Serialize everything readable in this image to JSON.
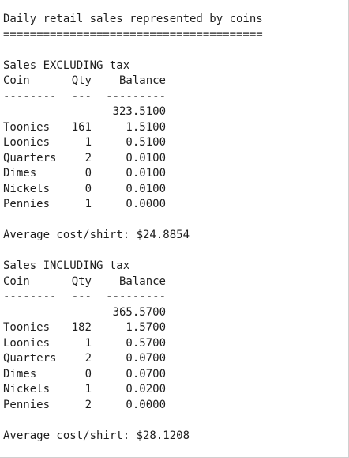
{
  "title": "Daily retail sales represented by coins",
  "title_rule": "=======================================",
  "sections": [
    {
      "heading": "Sales EXCLUDING tax",
      "col_coin": "Coin",
      "col_qty": "Qty",
      "col_balance": "Balance",
      "rule_coin": "--------",
      "rule_qty": "---",
      "rule_balance": "---------",
      "initial_balance": "323.5100",
      "rows": [
        {
          "coin": "Toonies",
          "qty": "161",
          "balance": "1.5100"
        },
        {
          "coin": "Loonies",
          "qty": "1",
          "balance": "0.5100"
        },
        {
          "coin": "Quarters",
          "qty": "2",
          "balance": "0.0100"
        },
        {
          "coin": "Dimes",
          "qty": "0",
          "balance": "0.0100"
        },
        {
          "coin": "Nickels",
          "qty": "0",
          "balance": "0.0100"
        },
        {
          "coin": "Pennies",
          "qty": "1",
          "balance": "0.0000"
        }
      ],
      "average": "Average cost/shirt: $24.8854"
    },
    {
      "heading": "Sales INCLUDING tax",
      "col_coin": "Coin",
      "col_qty": "Qty",
      "col_balance": "Balance",
      "rule_coin": "--------",
      "rule_qty": "---",
      "rule_balance": "---------",
      "initial_balance": "365.5700",
      "rows": [
        {
          "coin": "Toonies",
          "qty": "182",
          "balance": "1.5700"
        },
        {
          "coin": "Loonies",
          "qty": "1",
          "balance": "0.5700"
        },
        {
          "coin": "Quarters",
          "qty": "2",
          "balance": "0.0700"
        },
        {
          "coin": "Dimes",
          "qty": "0",
          "balance": "0.0700"
        },
        {
          "coin": "Nickels",
          "qty": "1",
          "balance": "0.0200"
        },
        {
          "coin": "Pennies",
          "qty": "2",
          "balance": "0.0000"
        }
      ],
      "average": "Average cost/shirt: $28.1208"
    }
  ]
}
